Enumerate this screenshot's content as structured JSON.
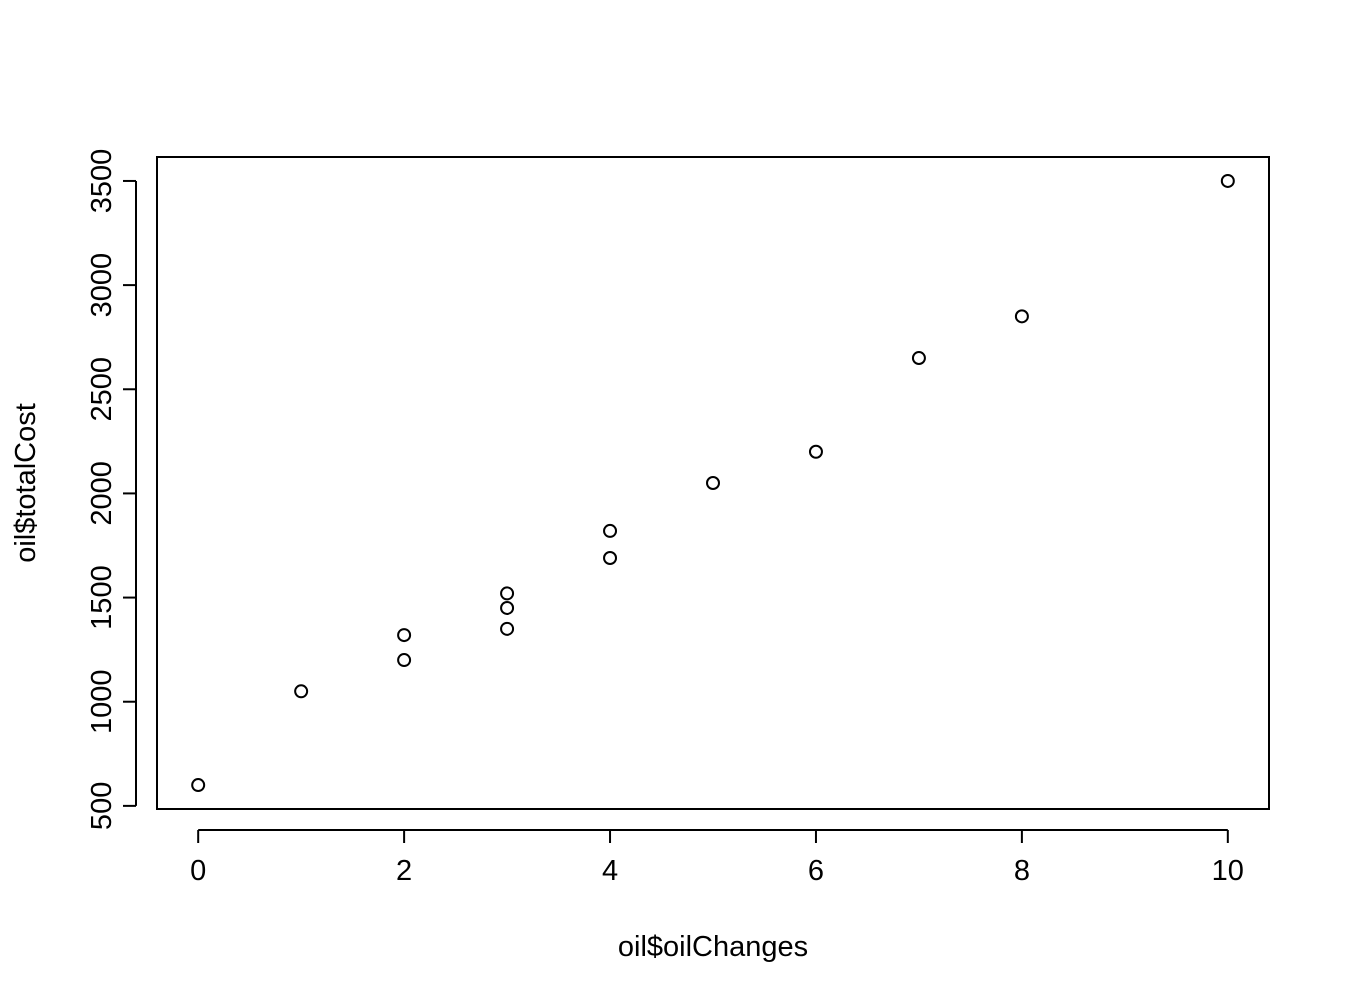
{
  "chart_data": {
    "type": "scatter",
    "title": "",
    "xlabel": "oil$oilChanges",
    "ylabel": "oil$totalCost",
    "xlim": [
      -0.4,
      10.4
    ],
    "ylim": [
      485,
      3615
    ],
    "x_ticks": [
      0,
      2,
      4,
      6,
      8,
      10
    ],
    "y_ticks": [
      500,
      1000,
      1500,
      2000,
      2500,
      3000,
      3500
    ],
    "grid": false,
    "marker": "open-circle",
    "points": [
      {
        "x": 0,
        "y": 600
      },
      {
        "x": 1,
        "y": 1050
      },
      {
        "x": 2,
        "y": 1200
      },
      {
        "x": 2,
        "y": 1320
      },
      {
        "x": 3,
        "y": 1350
      },
      {
        "x": 3,
        "y": 1450
      },
      {
        "x": 3,
        "y": 1520
      },
      {
        "x": 4,
        "y": 1690
      },
      {
        "x": 4,
        "y": 1820
      },
      {
        "x": 5,
        "y": 2050
      },
      {
        "x": 6,
        "y": 2200
      },
      {
        "x": 7,
        "y": 2650
      },
      {
        "x": 8,
        "y": 2850
      },
      {
        "x": 10,
        "y": 3500
      }
    ]
  }
}
